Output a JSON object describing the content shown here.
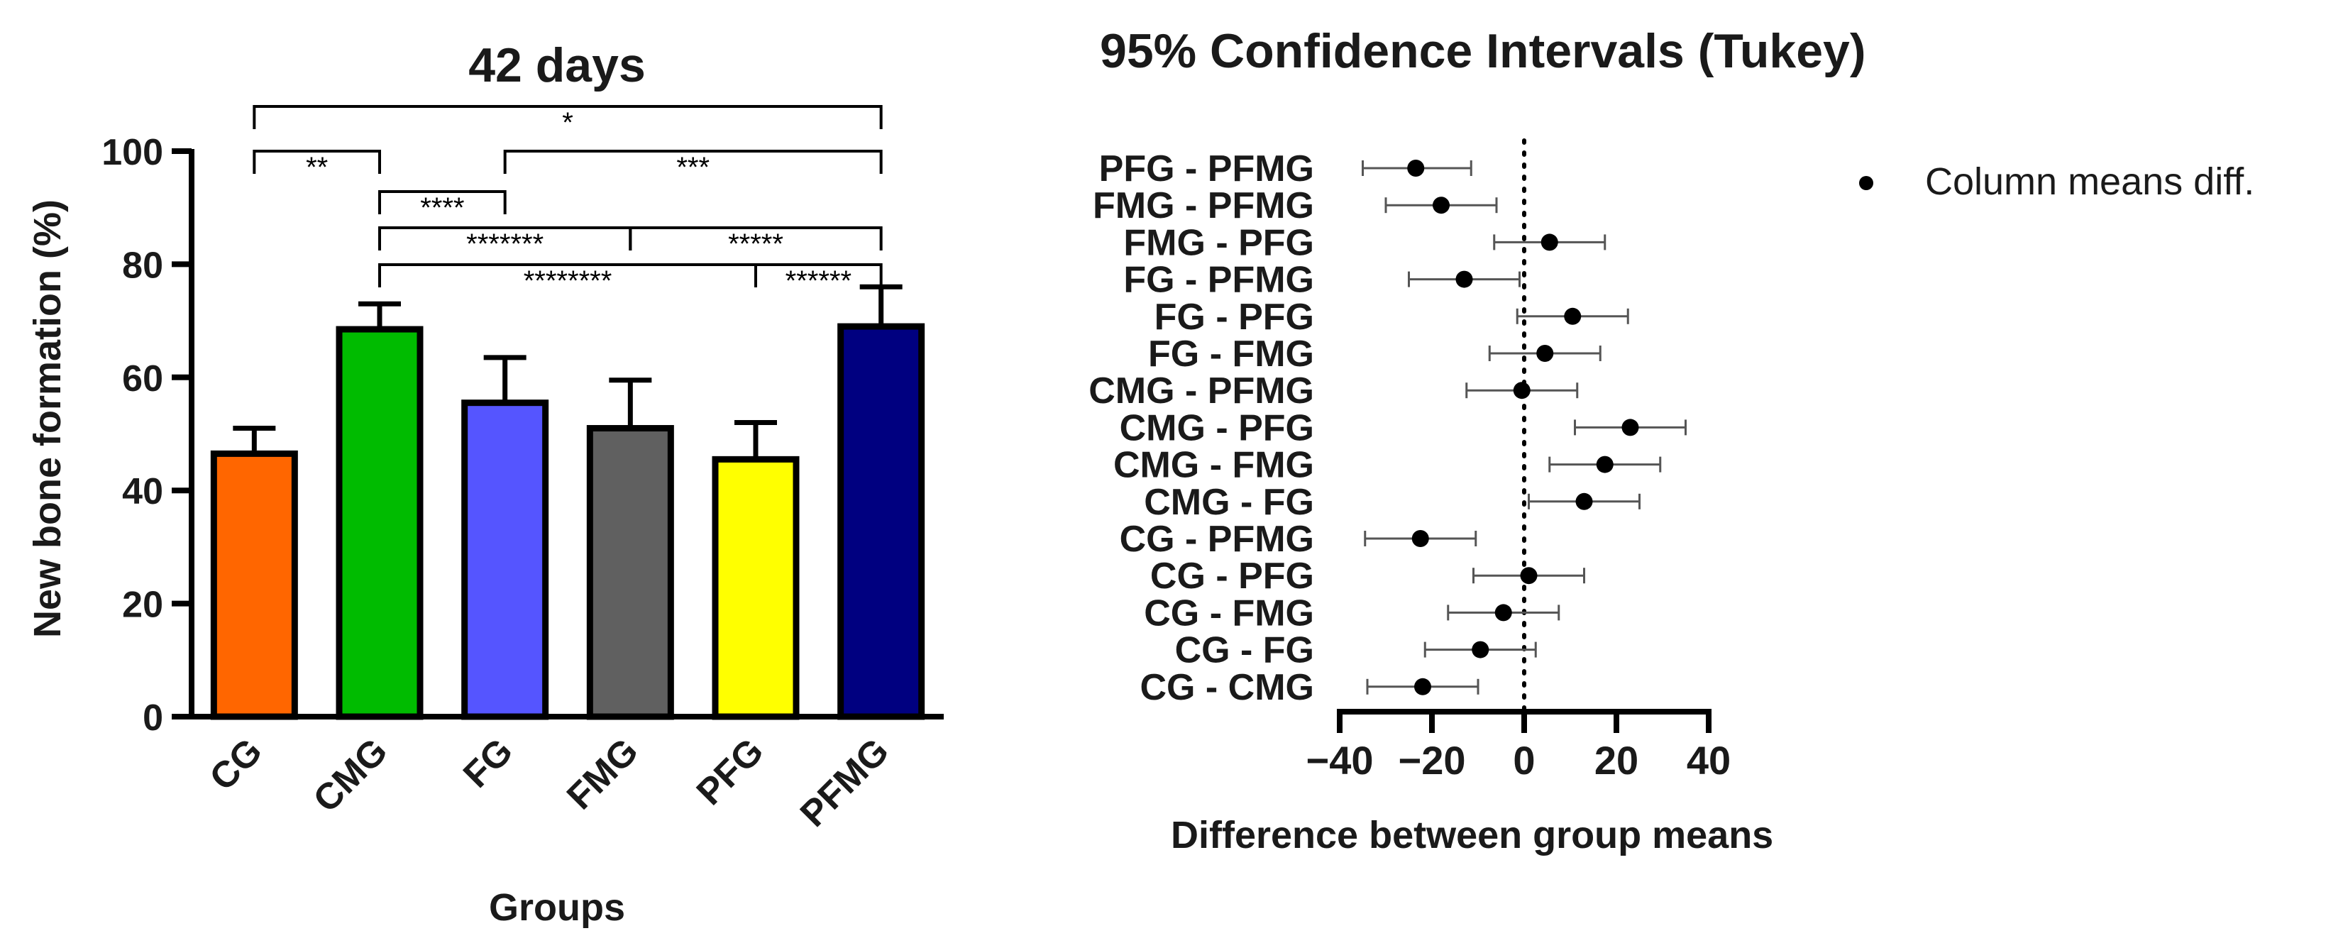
{
  "chart_data": [
    {
      "type": "bar",
      "title": "42 days",
      "xlabel": "Groups",
      "ylabel": "New bone formation (%)",
      "ylim": [
        0,
        100
      ],
      "yticks": [
        0,
        20,
        40,
        60,
        80,
        100
      ],
      "categories": [
        "CG",
        "CMG",
        "FG",
        "FMG",
        "PFG",
        "PFMG"
      ],
      "values": [
        46.5,
        68.5,
        55.5,
        51.0,
        45.5,
        69.0
      ],
      "errors": [
        4.5,
        4.5,
        8.0,
        8.5,
        6.5,
        7.0
      ],
      "colors": [
        "#ff6600",
        "#00bb00",
        "#5555ff",
        "#606060",
        "#ffff00",
        "#000080"
      ],
      "comparisons": [
        {
          "from": "CG",
          "to": "PFMG",
          "label": "*"
        },
        {
          "from": "CG",
          "to": "CMG",
          "label": "**"
        },
        {
          "from": "FG",
          "to": "PFMG",
          "label": "***"
        },
        {
          "from": "CMG",
          "to": "FG",
          "label": "****"
        },
        {
          "from": "FMG",
          "to": "PFMG",
          "label": "*****"
        },
        {
          "from": "CMG",
          "to": "FMG",
          "label": "*******"
        },
        {
          "from": "PFG",
          "to": "PFMG",
          "label": "******"
        },
        {
          "from": "CMG",
          "to": "PFG",
          "label": "********"
        }
      ]
    },
    {
      "type": "scatter",
      "title": "95% Confidence Intervals (Tukey)",
      "xlabel": "Difference between group means",
      "xlim": [
        -40,
        40
      ],
      "xticks": [
        -40,
        -20,
        0,
        20,
        40
      ],
      "xtick_labels": [
        "−40",
        "−20",
        "0",
        "20",
        "40"
      ],
      "legend": "Column means diff.",
      "rows": [
        {
          "label": "PFG - PFMG",
          "mean": -23.5,
          "low": -35,
          "high": -11.5
        },
        {
          "label": "FMG - PFMG",
          "mean": -18,
          "low": -30,
          "high": -6
        },
        {
          "label": "FMG - PFG",
          "mean": 5.5,
          "low": -6.5,
          "high": 17.5
        },
        {
          "label": "FG - PFMG",
          "mean": -13,
          "low": -25,
          "high": -1
        },
        {
          "label": "FG - PFG",
          "mean": 10.5,
          "low": -1.5,
          "high": 22.5
        },
        {
          "label": "FG - FMG",
          "mean": 4.5,
          "low": -7.5,
          "high": 16.5
        },
        {
          "label": "CMG - PFMG",
          "mean": -0.5,
          "low": -12.5,
          "high": 11.5
        },
        {
          "label": "CMG - PFG",
          "mean": 23,
          "low": 11,
          "high": 35
        },
        {
          "label": "CMG - FMG",
          "mean": 17.5,
          "low": 5.5,
          "high": 29.5
        },
        {
          "label": "CMG - FG",
          "mean": 13,
          "low": 1,
          "high": 25
        },
        {
          "label": "CG - PFMG",
          "mean": -22.5,
          "low": -34.5,
          "high": -10.5
        },
        {
          "label": "CG - PFG",
          "mean": 1,
          "low": -11,
          "high": 13
        },
        {
          "label": "CG - FMG",
          "mean": -4.5,
          "low": -16.5,
          "high": 7.5
        },
        {
          "label": "CG - FG",
          "mean": -9.5,
          "low": -21.5,
          "high": 2.5
        },
        {
          "label": "CG - CMG",
          "mean": -22,
          "low": -34,
          "high": -10
        }
      ]
    }
  ]
}
